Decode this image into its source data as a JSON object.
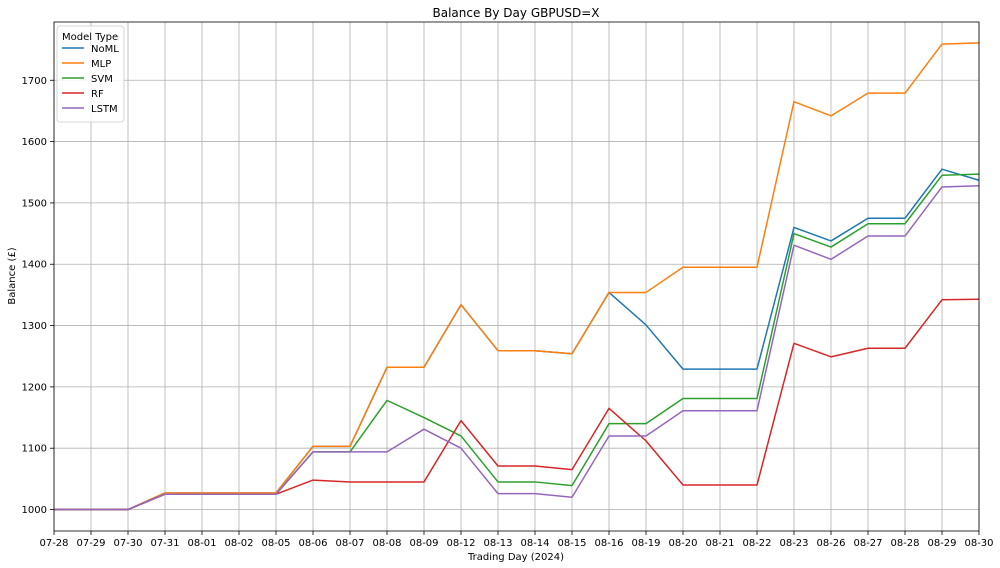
{
  "chart_data": {
    "type": "line",
    "title": "Balance By Day GBPUSD=X",
    "xlabel": "Trading Day (2024)",
    "ylabel": "Balance (£)",
    "ylim": [
      965,
      1795
    ],
    "yticks": [
      1000,
      1100,
      1200,
      1300,
      1400,
      1500,
      1600,
      1700
    ],
    "grid": true,
    "legend_title": "Model Type",
    "legend_position": "top-left",
    "categories": [
      "07-28",
      "07-29",
      "07-30",
      "07-31",
      "08-01",
      "08-02",
      "08-05",
      "08-06",
      "08-07",
      "08-08",
      "08-09",
      "08-12",
      "08-13",
      "08-14",
      "08-15",
      "08-16",
      "08-19",
      "08-20",
      "08-21",
      "08-22",
      "08-23",
      "08-26",
      "08-27",
      "08-28",
      "08-29",
      "08-30"
    ],
    "series": [
      {
        "name": "NoML",
        "color": "#1f77b4",
        "values": [
          1000,
          1000,
          1000,
          1027,
          1027,
          1027,
          1027,
          1103,
          1103,
          1232,
          1232,
          1334,
          1259,
          1259,
          1254,
          1354,
          1301,
          1229,
          1229,
          1229,
          1460,
          1438,
          1475,
          1475,
          1555,
          1537
        ]
      },
      {
        "name": "MLP",
        "color": "#ff7f0e",
        "values": [
          1000,
          1000,
          1000,
          1027,
          1027,
          1027,
          1027,
          1103,
          1103,
          1232,
          1232,
          1334,
          1259,
          1259,
          1254,
          1354,
          1354,
          1395,
          1395,
          1395,
          1665,
          1642,
          1679,
          1679,
          1759,
          1761
        ]
      },
      {
        "name": "SVM",
        "color": "#2ca02c",
        "values": [
          1000,
          1000,
          1000,
          1025,
          1025,
          1025,
          1025,
          1094,
          1094,
          1178,
          1150,
          1120,
          1045,
          1045,
          1039,
          1140,
          1140,
          1181,
          1181,
          1181,
          1450,
          1428,
          1466,
          1466,
          1545,
          1547
        ]
      },
      {
        "name": "RF",
        "color": "#d62728",
        "values": [
          1000,
          1000,
          1000,
          1025,
          1025,
          1025,
          1025,
          1048,
          1045,
          1045,
          1045,
          1145,
          1071,
          1071,
          1065,
          1165,
          1112,
          1040,
          1040,
          1040,
          1271,
          1249,
          1263,
          1263,
          1342,
          1343
        ]
      },
      {
        "name": "LSTM",
        "color": "#9467bd",
        "values": [
          1000,
          1000,
          1000,
          1025,
          1025,
          1025,
          1025,
          1094,
          1094,
          1094,
          1131,
          1100,
          1026,
          1026,
          1020,
          1120,
          1120,
          1161,
          1161,
          1161,
          1431,
          1408,
          1446,
          1446,
          1526,
          1528
        ]
      }
    ]
  }
}
